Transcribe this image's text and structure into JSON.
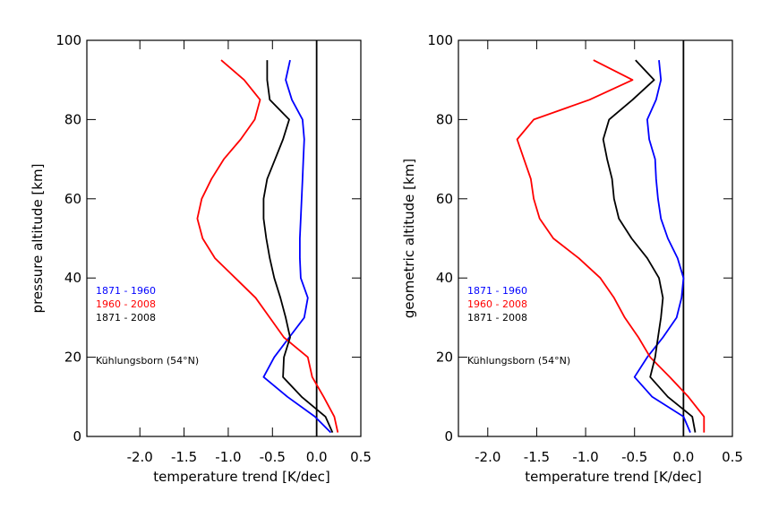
{
  "chart_data": [
    {
      "type": "line",
      "xlabel": "temperature trend [K/dec]",
      "ylabel": "pressure altitude [km]",
      "annotation": "Kühlungsborn (54°N)",
      "xlim": [
        -2.6,
        0.5
      ],
      "ylim": [
        0,
        100
      ],
      "xticks": [
        {
          "value": -2,
          "label": "-2.0"
        },
        -1.5,
        {
          "value": -1,
          "label": "-1.0"
        },
        -0.5,
        {
          "value": 0,
          "label": "0.0"
        },
        0.5
      ],
      "yticks": [
        0,
        20,
        40,
        60,
        80,
        100
      ],
      "vline": 0,
      "altitude": [
        1,
        5,
        10,
        15,
        20,
        25,
        30,
        35,
        40,
        45,
        50,
        55,
        60,
        65,
        70,
        75,
        80,
        85,
        90,
        95
      ],
      "series": [
        {
          "name": "1871 - 1960",
          "color": "#0000ff",
          "values": [
            0.16,
            -0.02,
            -0.33,
            -0.6,
            -0.48,
            -0.31,
            -0.14,
            -0.1,
            -0.18,
            -0.19,
            -0.19,
            -0.18,
            -0.17,
            -0.16,
            -0.15,
            -0.14,
            -0.16,
            -0.28,
            -0.35,
            -0.3
          ]
        },
        {
          "name": "1960 - 2008",
          "color": "#ff0000",
          "values": [
            0.24,
            0.2,
            0.08,
            -0.05,
            -0.1,
            -0.37,
            -0.53,
            -0.69,
            -0.92,
            -1.15,
            -1.29,
            -1.35,
            -1.3,
            -1.19,
            -1.05,
            -0.86,
            -0.7,
            -0.64,
            -0.82,
            -1.08
          ]
        },
        {
          "name": "1871 - 2008",
          "color": "#000000",
          "values": [
            0.18,
            0.1,
            -0.17,
            -0.38,
            -0.37,
            -0.3,
            -0.35,
            -0.41,
            -0.48,
            -0.53,
            -0.57,
            -0.6,
            -0.6,
            -0.56,
            -0.47,
            -0.38,
            -0.31,
            -0.53,
            -0.56,
            -0.56
          ]
        }
      ]
    },
    {
      "type": "line",
      "xlabel": "temperature trend [K/dec]",
      "ylabel": "geometric altitude [km]",
      "annotation": "Kühlungsborn (54°N)",
      "xlim": [
        -2.3,
        0.5
      ],
      "ylim": [
        0,
        100
      ],
      "xticks": [
        {
          "value": -2,
          "label": "-2.0"
        },
        -1.5,
        {
          "value": -1,
          "label": "-1.0"
        },
        -0.5,
        {
          "value": 0,
          "label": "0.0"
        },
        0.5
      ],
      "yticks": [
        0,
        20,
        40,
        60,
        80,
        100
      ],
      "vline": 0,
      "altitude": [
        1,
        5,
        10,
        15,
        20,
        25,
        30,
        35,
        40,
        45,
        50,
        55,
        60,
        65,
        70,
        75,
        80,
        85,
        90,
        95
      ],
      "series": [
        {
          "name": "1871 - 1960",
          "color": "#0000ff",
          "values": [
            0.07,
            0,
            -0.32,
            -0.5,
            -0.37,
            -0.21,
            -0.07,
            -0.02,
            0,
            -0.06,
            -0.16,
            -0.23,
            -0.26,
            -0.28,
            -0.29,
            -0.35,
            -0.37,
            -0.28,
            -0.23,
            -0.25
          ]
        },
        {
          "name": "1960 - 2008",
          "color": "#ff0000",
          "values": [
            0.21,
            0.21,
            0.05,
            -0.14,
            -0.34,
            -0.46,
            -0.6,
            -0.71,
            -0.85,
            -1.07,
            -1.33,
            -1.47,
            -1.53,
            -1.56,
            -1.63,
            -1.7,
            -1.53,
            -0.96,
            -0.52,
            -0.92
          ]
        },
        {
          "name": "1871 - 2008",
          "color": "#000000",
          "values": [
            0.12,
            0.09,
            -0.16,
            -0.34,
            -0.29,
            -0.26,
            -0.23,
            -0.21,
            -0.25,
            -0.37,
            -0.53,
            -0.66,
            -0.71,
            -0.73,
            -0.78,
            -0.82,
            -0.76,
            -0.52,
            -0.3,
            -0.49
          ]
        }
      ]
    }
  ]
}
